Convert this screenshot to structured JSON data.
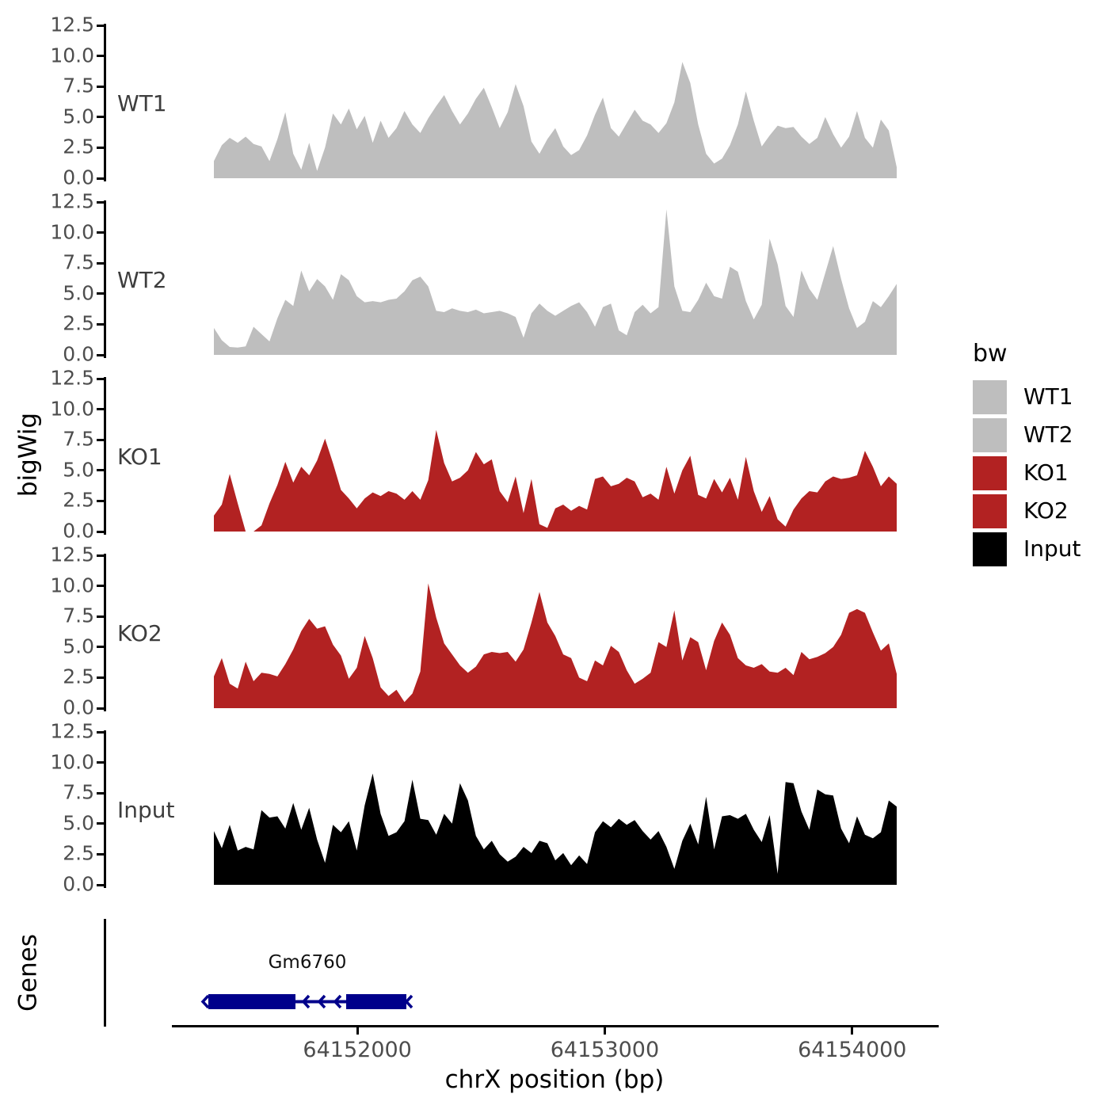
{
  "figure": {
    "y_axis_title": "bigWig",
    "genes_title": "Genes",
    "x_axis_title": "chrX position (bp)"
  },
  "legend": {
    "title": "bw",
    "items": [
      {
        "label": "WT1",
        "color": "#BEBEBE"
      },
      {
        "label": "WT2",
        "color": "#BEBEBE"
      },
      {
        "label": "KO1",
        "color": "#B22222"
      },
      {
        "label": "KO2",
        "color": "#B22222"
      },
      {
        "label": "Input",
        "color": "#000000"
      }
    ]
  },
  "gene_track": {
    "gene_label": "Gm6760",
    "color": "#00008B",
    "strand": "-",
    "start_bp": 64151400,
    "end_bp": 64152200
  },
  "chart_data": {
    "type": "area",
    "title": "",
    "xlabel": "chrX position (bp)",
    "ylabel": "bigWig",
    "x_range_bp": [
      64151420,
      64154180
    ],
    "x_axis_ticks": [
      64152000,
      64153000,
      64154000
    ],
    "ylim": [
      0,
      12.5
    ],
    "y_ticks": [
      0.0,
      2.5,
      5.0,
      7.5,
      10.0,
      12.5
    ],
    "grid": false,
    "legend_position": "right",
    "facets": [
      "WT1",
      "WT2",
      "KO1",
      "KO2",
      "Input"
    ],
    "series": [
      {
        "name": "WT1",
        "color": "#BEBEBE",
        "values": [
          1.4,
          2.7,
          3.3,
          2.9,
          3.4,
          2.8,
          2.6,
          1.4,
          3.2,
          5.4,
          2.0,
          0.7,
          2.9,
          0.6,
          2.5,
          5.3,
          4.4,
          5.7,
          4.0,
          5.1,
          2.9,
          4.7,
          3.3,
          4.1,
          5.5,
          4.4,
          3.7,
          4.9,
          5.9,
          6.8,
          5.5,
          4.4,
          5.3,
          6.5,
          7.4,
          5.8,
          4.1,
          5.4,
          7.7,
          5.9,
          3.0,
          2.0,
          3.2,
          4.1,
          2.6,
          1.9,
          2.3,
          3.5,
          5.2,
          6.6,
          4.1,
          3.4,
          4.5,
          5.6,
          4.7,
          4.4,
          3.7,
          4.5,
          6.2,
          9.5,
          7.8,
          4.4,
          2.0,
          1.2,
          1.6,
          2.7,
          4.4,
          7.1,
          4.7,
          2.6,
          3.5,
          4.3,
          4.1,
          4.2,
          3.4,
          2.8,
          3.3,
          5.0,
          3.6,
          2.5,
          3.4,
          5.5,
          3.3,
          2.5,
          4.8,
          3.9,
          0.9
        ]
      },
      {
        "name": "WT2",
        "color": "#BEBEBE",
        "values": [
          2.2,
          1.2,
          0.65,
          0.6,
          0.7,
          2.3,
          1.7,
          1.1,
          3.0,
          4.5,
          4.0,
          6.9,
          5.2,
          6.2,
          5.6,
          4.5,
          6.6,
          6.1,
          4.8,
          4.3,
          4.4,
          4.3,
          4.5,
          4.6,
          5.2,
          6.1,
          6.4,
          5.6,
          3.6,
          3.5,
          3.8,
          3.6,
          3.5,
          3.7,
          3.4,
          3.5,
          3.6,
          3.4,
          3.1,
          1.4,
          3.4,
          4.2,
          3.6,
          3.2,
          3.6,
          4.0,
          4.3,
          3.5,
          2.3,
          3.9,
          4.2,
          2.0,
          1.6,
          3.5,
          4.1,
          3.4,
          3.9,
          11.9,
          5.6,
          3.6,
          3.5,
          4.5,
          5.9,
          4.8,
          4.6,
          7.2,
          6.8,
          4.4,
          2.9,
          4.1,
          9.5,
          7.4,
          4.0,
          3.1,
          6.9,
          5.4,
          4.5,
          6.7,
          8.9,
          6.2,
          3.8,
          2.2,
          2.7,
          4.4,
          3.9,
          4.8,
          5.8
        ]
      },
      {
        "name": "KO1",
        "color": "#B22222",
        "values": [
          1.3,
          2.2,
          4.7,
          2.3,
          0,
          0,
          0.5,
          2.3,
          3.8,
          5.7,
          4.0,
          5.3,
          4.6,
          5.8,
          7.6,
          5.6,
          3.4,
          2.7,
          1.9,
          2.7,
          3.2,
          2.9,
          3.3,
          3.1,
          2.6,
          3.3,
          2.6,
          4.2,
          8.3,
          5.6,
          4.1,
          4.4,
          5.0,
          6.5,
          5.5,
          5.9,
          3.3,
          2.4,
          4.5,
          1.5,
          4.3,
          0.6,
          0.3,
          1.9,
          2.2,
          1.7,
          2.1,
          1.8,
          4.3,
          4.5,
          3.7,
          3.9,
          4.4,
          4.1,
          2.8,
          3.1,
          2.6,
          5.3,
          3.1,
          5.0,
          6.2,
          3.0,
          2.7,
          4.3,
          3.2,
          4.4,
          2.6,
          6.1,
          3.3,
          1.6,
          2.9,
          1.0,
          0.4,
          1.8,
          2.7,
          3.3,
          3.2,
          4.1,
          4.5,
          4.3,
          4.4,
          4.6,
          6.6,
          5.3,
          3.7,
          4.5,
          3.9
        ]
      },
      {
        "name": "KO2",
        "color": "#B22222",
        "values": [
          2.6,
          4.1,
          2.0,
          1.6,
          3.8,
          2.2,
          2.9,
          2.8,
          2.6,
          3.6,
          4.8,
          6.3,
          7.3,
          6.5,
          6.7,
          5.2,
          4.3,
          2.4,
          3.3,
          5.9,
          4.1,
          1.7,
          1.0,
          1.5,
          0.5,
          1.2,
          3.0,
          10.2,
          7.4,
          5.3,
          4.4,
          3.5,
          2.9,
          3.4,
          4.4,
          4.6,
          4.5,
          4.6,
          3.8,
          4.8,
          7.0,
          9.5,
          7.0,
          5.9,
          4.4,
          4.1,
          2.5,
          2.2,
          3.9,
          3.5,
          5.1,
          4.6,
          3.1,
          2.0,
          2.4,
          2.9,
          5.4,
          5.0,
          8.0,
          3.9,
          5.8,
          5.4,
          3.1,
          5.5,
          7.0,
          6.0,
          4.1,
          3.5,
          3.3,
          3.6,
          3.0,
          2.9,
          3.3,
          2.7,
          4.6,
          4.0,
          4.2,
          4.5,
          5.0,
          6.0,
          7.8,
          8.1,
          7.8,
          6.2,
          4.7,
          5.3,
          2.8
        ]
      },
      {
        "name": "Input",
        "color": "#000000",
        "values": [
          4.4,
          3.0,
          4.9,
          2.8,
          3.1,
          2.9,
          6.1,
          5.5,
          5.6,
          4.6,
          6.7,
          4.5,
          6.3,
          3.7,
          1.8,
          4.9,
          4.3,
          5.2,
          2.8,
          6.5,
          9.1,
          5.8,
          4.0,
          4.3,
          5.2,
          8.6,
          5.4,
          5.3,
          4.1,
          5.8,
          5.0,
          8.3,
          6.9,
          4.0,
          2.9,
          3.6,
          2.5,
          1.9,
          2.3,
          3.1,
          2.6,
          3.6,
          3.4,
          2.0,
          2.6,
          1.6,
          2.4,
          1.7,
          4.3,
          5.2,
          4.7,
          5.4,
          4.9,
          5.3,
          4.4,
          3.7,
          4.4,
          3.1,
          1.3,
          3.6,
          5.0,
          3.3,
          7.2,
          2.9,
          5.6,
          5.7,
          5.4,
          5.8,
          4.5,
          3.5,
          5.7,
          0.9,
          8.4,
          8.3,
          6.0,
          4.5,
          7.8,
          7.4,
          7.3,
          4.6,
          3.4,
          5.6,
          4.1,
          3.8,
          4.3,
          6.9,
          6.4
        ]
      }
    ]
  }
}
